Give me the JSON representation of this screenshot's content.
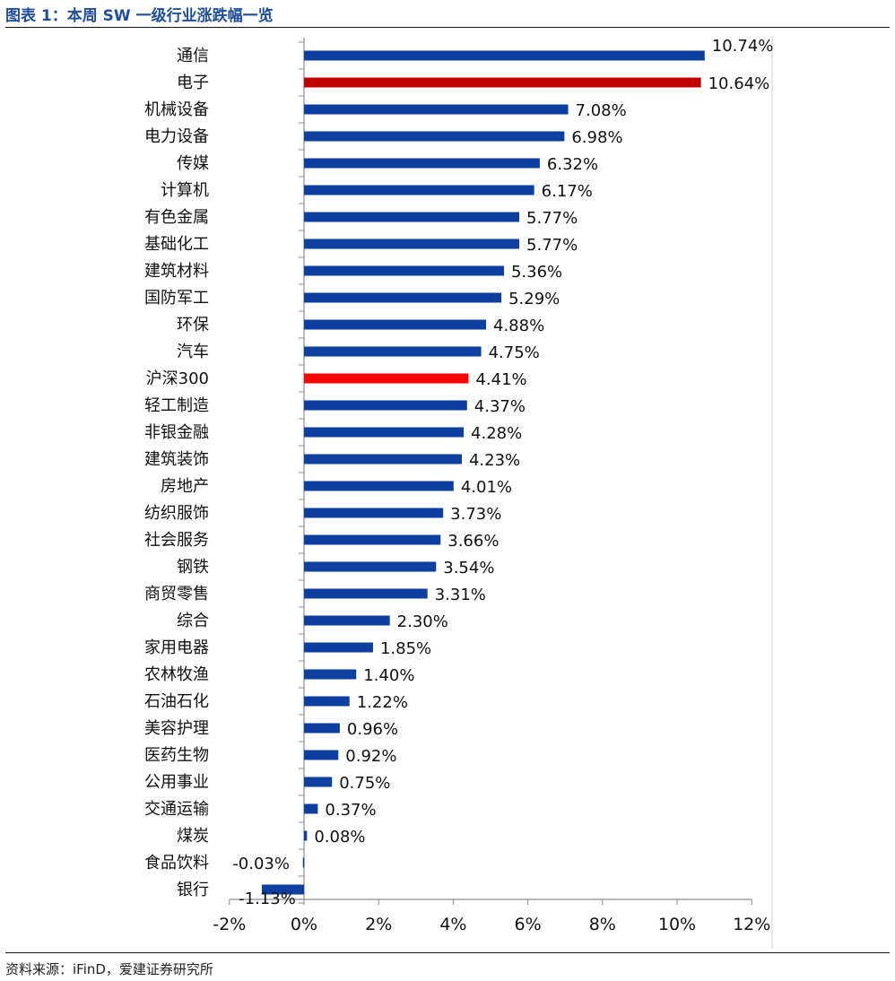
{
  "title": "图表 1：本周 SW 一级行业涨跌幅一览",
  "source": "资料来源：iFinD，爱建证券研究所",
  "colors": {
    "default": "#0d3fa0",
    "highlight_dark": "#c00000",
    "highlight_bright": "#ff0000",
    "title": "#1f4e9a"
  },
  "chart_data": {
    "type": "bar",
    "orientation": "horizontal",
    "categories": [
      "通信",
      "电子",
      "机械设备",
      "电力设备",
      "传媒",
      "计算机",
      "有色金属",
      "基础化工",
      "建筑材料",
      "国防军工",
      "环保",
      "汽车",
      "沪深300",
      "轻工制造",
      "非银金融",
      "建筑装饰",
      "房地产",
      "纺织服饰",
      "社会服务",
      "钢铁",
      "商贸零售",
      "综合",
      "家用电器",
      "农林牧渔",
      "石油石化",
      "美容护理",
      "医药生物",
      "公用事业",
      "交通运输",
      "煤炭",
      "食品饮料",
      "银行"
    ],
    "values": [
      10.74,
      10.64,
      7.08,
      6.98,
      6.32,
      6.17,
      5.77,
      5.77,
      5.36,
      5.29,
      4.88,
      4.75,
      4.41,
      4.37,
      4.28,
      4.23,
      4.01,
      3.73,
      3.66,
      3.54,
      3.31,
      2.3,
      1.85,
      1.4,
      1.22,
      0.96,
      0.92,
      0.75,
      0.37,
      0.08,
      -0.03,
      -1.13
    ],
    "value_labels": [
      "10.74%",
      "10.64%",
      "7.08%",
      "6.98%",
      "6.32%",
      "6.17%",
      "5.77%",
      "5.77%",
      "5.36%",
      "5.29%",
      "4.88%",
      "4.75%",
      "4.41%",
      "4.37%",
      "4.28%",
      "4.23%",
      "4.01%",
      "3.73%",
      "3.66%",
      "3.54%",
      "3.31%",
      "2.30%",
      "1.85%",
      "1.40%",
      "1.22%",
      "0.96%",
      "0.92%",
      "0.75%",
      "0.37%",
      "0.08%",
      "-0.03%",
      "-1.13%"
    ],
    "bar_colors": {
      "电子": "#c00000",
      "沪深300": "#ff0000"
    },
    "xlim": [
      -2,
      12
    ],
    "xticks": [
      -2,
      0,
      2,
      4,
      6,
      8,
      10,
      12
    ],
    "xtick_labels": [
      "-2%",
      "0%",
      "2%",
      "4%",
      "6%",
      "8%",
      "10%",
      "12%"
    ],
    "grid": false,
    "legend": "none"
  }
}
